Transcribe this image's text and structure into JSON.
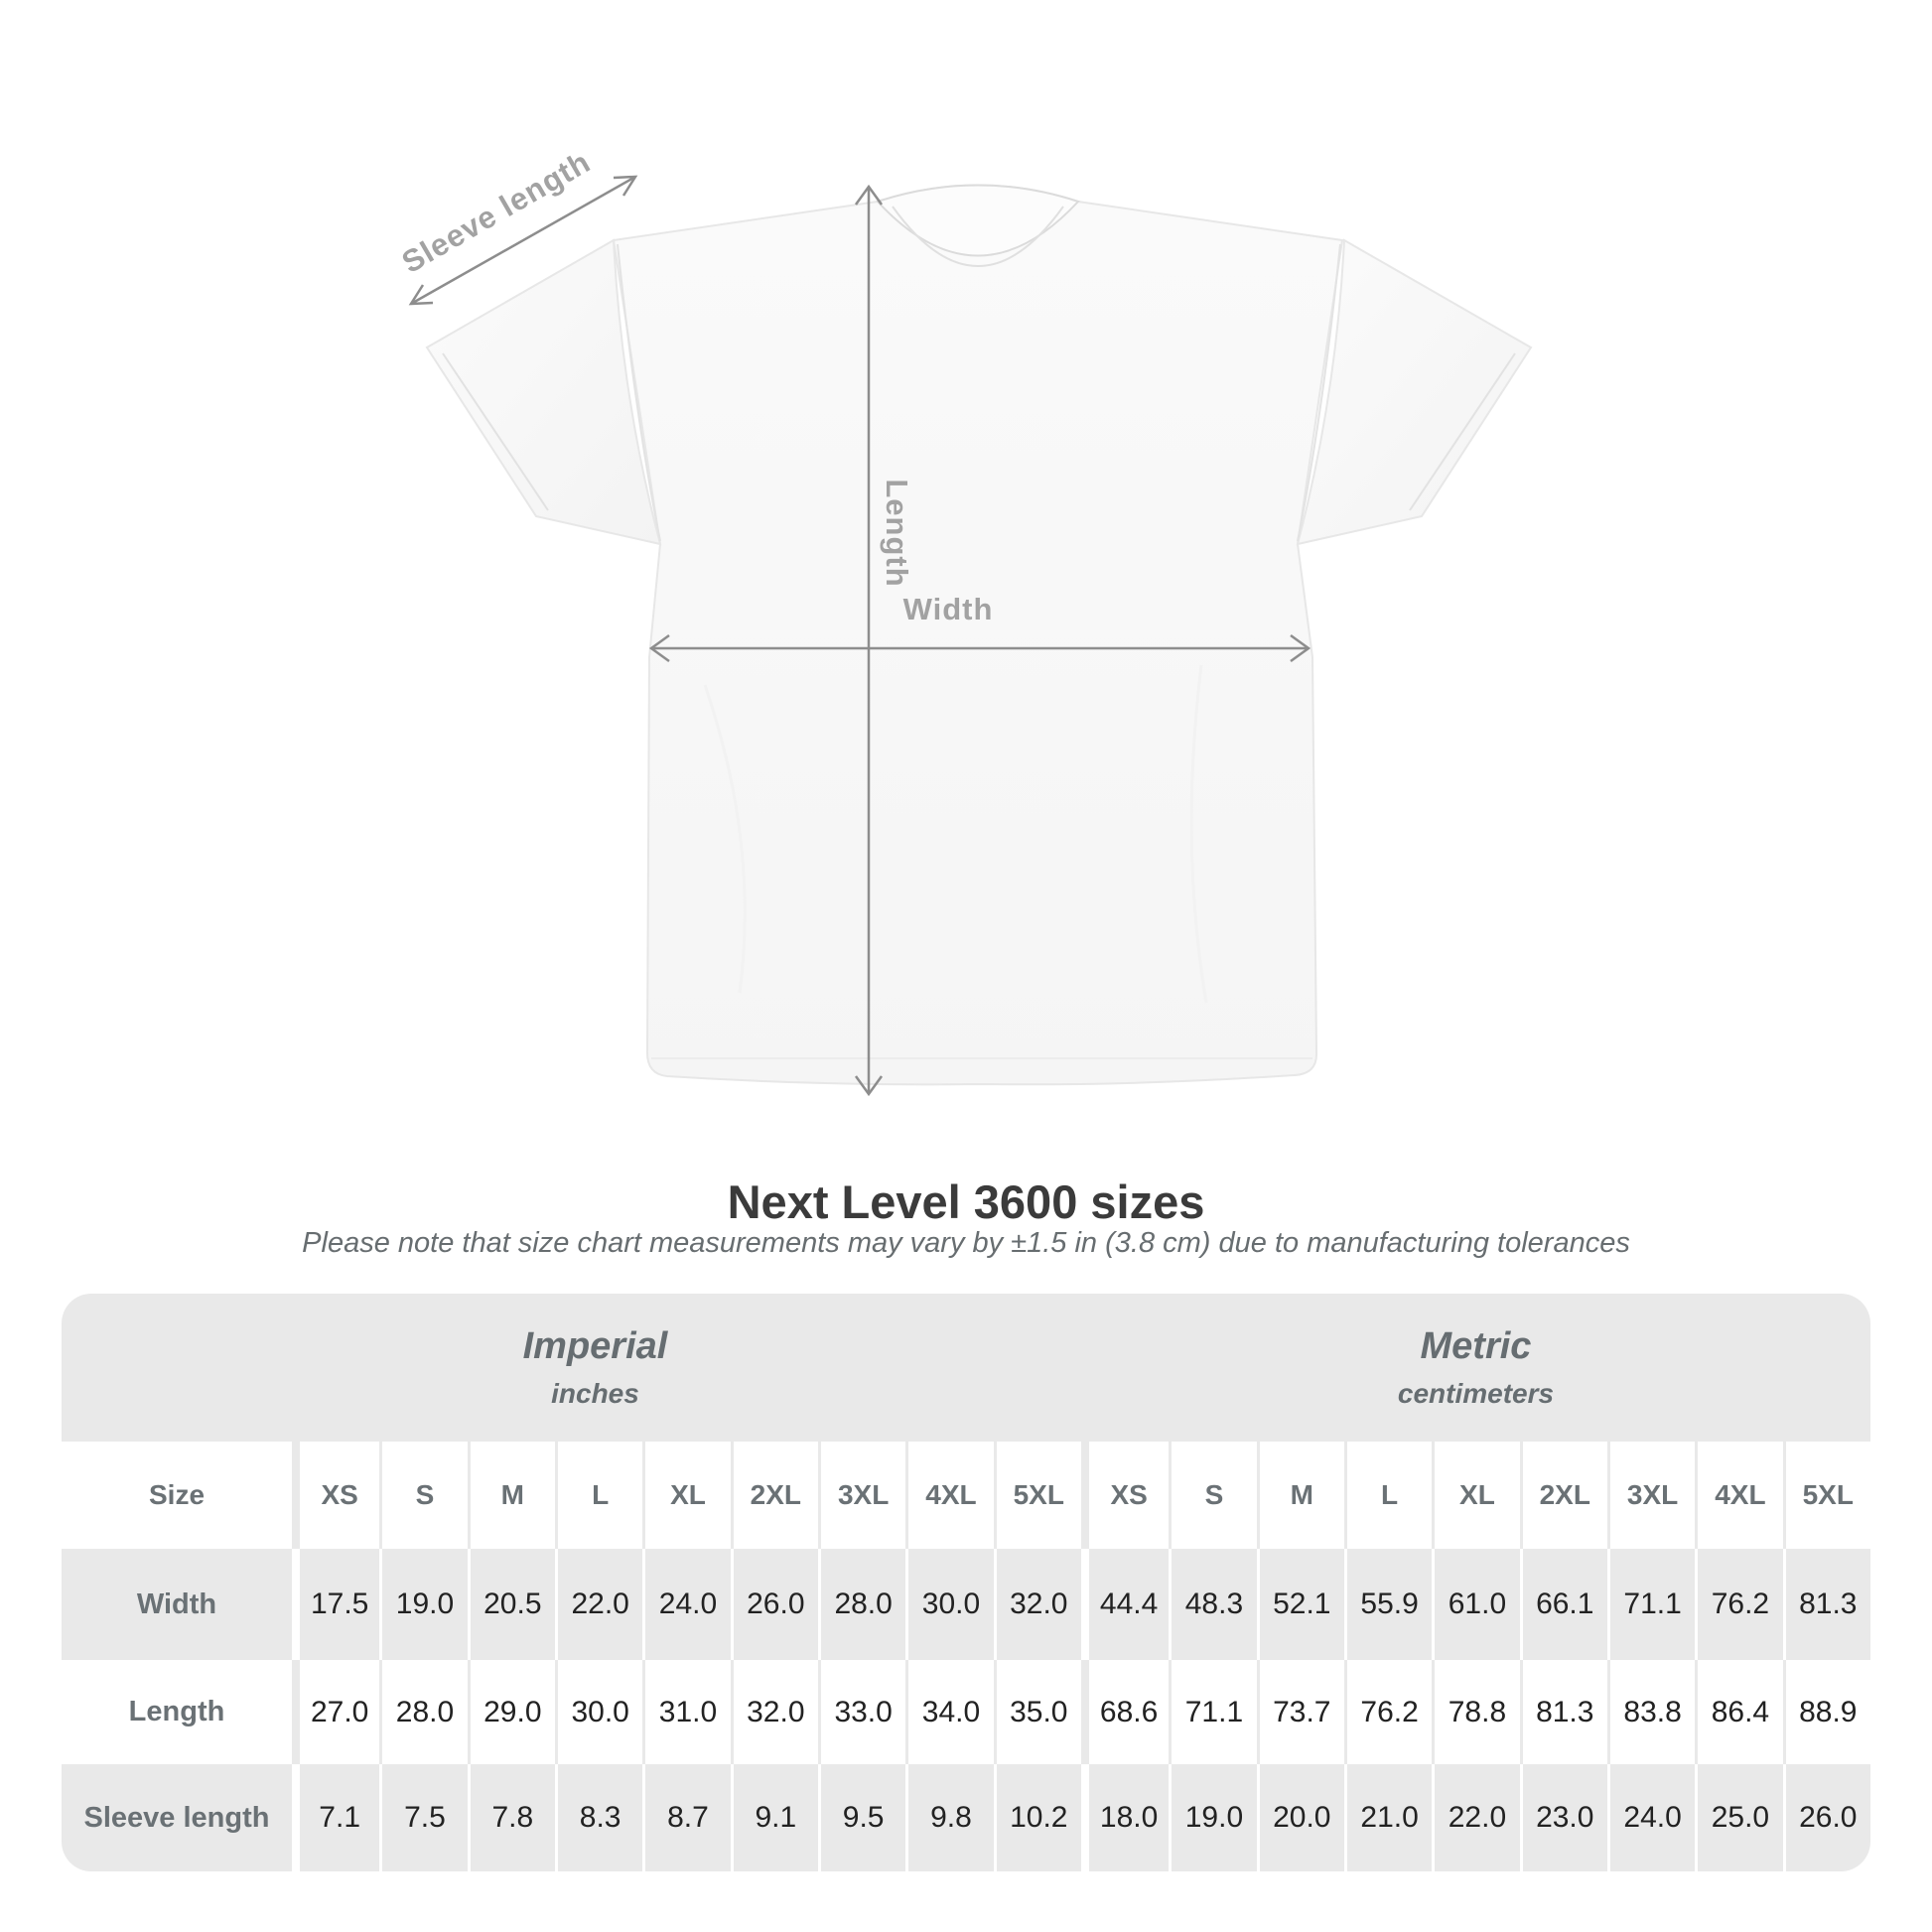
{
  "diagram": {
    "sleeve_label": "Sleeve length",
    "length_label": "Length",
    "width_label": "Width",
    "arrow_color": "#8d8d8d",
    "label_color": "#a2a2a2"
  },
  "title": "Next Level 3600 sizes",
  "subtitle": "Please note that size chart measurements may vary by ±1.5 in (3.8 cm) due to manufacturing tolerances",
  "chart_data": {
    "type": "table",
    "title": "Next Level 3600 sizes",
    "note": "Measurements may vary by ±1.5 in (3.8 cm) due to manufacturing tolerances",
    "corner_label": "Size",
    "groups": [
      {
        "name": "Imperial",
        "unit": "inches",
        "sizes": [
          "XS",
          "S",
          "M",
          "L",
          "XL",
          "2XL",
          "3XL",
          "4XL",
          "5XL"
        ]
      },
      {
        "name": "Metric",
        "unit": "centimeters",
        "sizes": [
          "XS",
          "S",
          "M",
          "L",
          "XL",
          "2XL",
          "3XL",
          "4XL",
          "5XL"
        ]
      }
    ],
    "rows": [
      {
        "label": "Width",
        "imperial": [
          "17.5",
          "19.0",
          "20.5",
          "22.0",
          "24.0",
          "26.0",
          "28.0",
          "30.0",
          "32.0"
        ],
        "metric": [
          "44.4",
          "48.3",
          "52.1",
          "55.9",
          "61.0",
          "66.1",
          "71.1",
          "76.2",
          "81.3"
        ]
      },
      {
        "label": "Length",
        "imperial": [
          "27.0",
          "28.0",
          "29.0",
          "30.0",
          "31.0",
          "32.0",
          "33.0",
          "34.0",
          "35.0"
        ],
        "metric": [
          "68.6",
          "71.1",
          "73.7",
          "76.2",
          "78.8",
          "81.3",
          "83.8",
          "86.4",
          "88.9"
        ]
      },
      {
        "label": "Sleeve length",
        "imperial": [
          "7.1",
          "7.5",
          "7.8",
          "8.3",
          "8.7",
          "9.1",
          "9.5",
          "9.8",
          "10.2"
        ],
        "metric": [
          "18.0",
          "19.0",
          "20.0",
          "21.0",
          "22.0",
          "23.0",
          "24.0",
          "25.0",
          "26.0"
        ]
      }
    ]
  },
  "colors": {
    "table_gray": "#e9e9e9",
    "header_text": "#6a7175",
    "data_text": "#222222",
    "title_text": "#3b3b3b",
    "subtitle_text": "#676d70",
    "arrow": "#8d8d8d",
    "diagram_label": "#a2a2a2"
  }
}
